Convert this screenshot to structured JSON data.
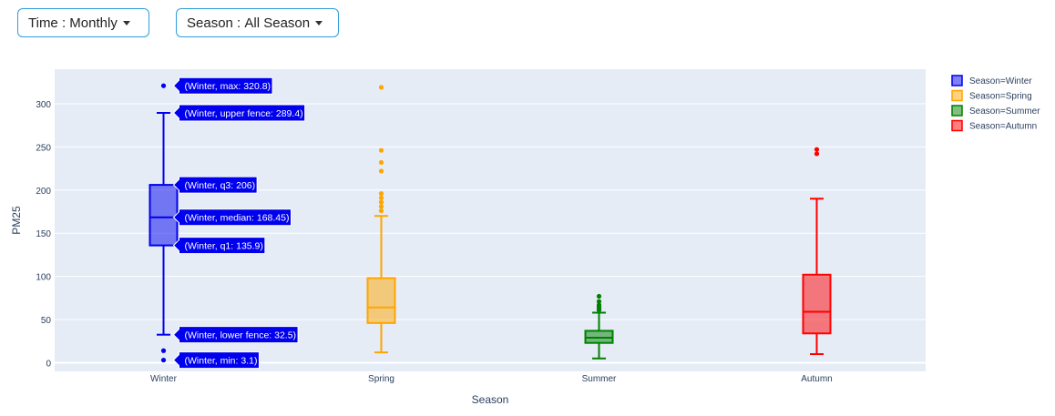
{
  "controls": {
    "time": {
      "label": "Time",
      "separator": " : ",
      "value": "Monthly"
    },
    "season": {
      "label": "Season",
      "separator": " : ",
      "value": "All Season"
    }
  },
  "chart_data": {
    "type": "box",
    "xlabel": "Season",
    "ylabel": "PM25",
    "ylim": [
      -10,
      340
    ],
    "yticks": [
      0,
      50,
      100,
      150,
      200,
      250,
      300
    ],
    "categories": [
      "Winter",
      "Spring",
      "Summer",
      "Autumn"
    ],
    "legend_position": "top-right",
    "series": [
      {
        "name": "Season=Winter",
        "category": "Winter",
        "color": "#0000ee",
        "fill": "rgba(0,0,238,0.5)",
        "min": 3.1,
        "lower_fence": 32.5,
        "q1": 135.9,
        "median": 168.45,
        "q3": 206,
        "upper_fence": 289.4,
        "max": 320.8,
        "outliers": [
          3.1,
          14,
          320.8
        ]
      },
      {
        "name": "Season=Spring",
        "category": "Spring",
        "color": "#ffa500",
        "fill": "rgba(255,165,0,0.5)",
        "lower_fence": 12,
        "q1": 46,
        "median": 64,
        "q3": 98,
        "upper_fence": 170,
        "outliers": [
          176,
          181,
          186,
          191,
          196,
          222,
          232,
          246,
          319
        ]
      },
      {
        "name": "Season=Summer",
        "category": "Summer",
        "color": "#008000",
        "fill": "rgba(0,128,0,0.5)",
        "lower_fence": 5,
        "q1": 23,
        "median": 29,
        "q3": 37,
        "upper_fence": 58,
        "outliers": [
          61,
          63,
          65,
          67,
          71,
          77
        ]
      },
      {
        "name": "Season=Autumn",
        "category": "Autumn",
        "color": "#ff0000",
        "fill": "rgba(255,0,0,0.5)",
        "lower_fence": 10,
        "q1": 34,
        "median": 59,
        "q3": 102,
        "upper_fence": 190,
        "outliers": [
          242,
          247
        ]
      }
    ],
    "hover_labels": [
      {
        "text": "(Winter, max: 320.8)",
        "value": 320.8
      },
      {
        "text": "(Winter, upper fence: 289.4)",
        "value": 289.4
      },
      {
        "text": "(Winter, q3: 206)",
        "value": 206
      },
      {
        "text": "(Winter, median: 168.45)",
        "value": 168.45
      },
      {
        "text": "(Winter, q1: 135.9)",
        "value": 135.9
      },
      {
        "text": "(Winter, lower fence: 32.5)",
        "value": 32.5
      },
      {
        "text": "(Winter, min: 3.1)",
        "value": 3.1
      }
    ]
  }
}
